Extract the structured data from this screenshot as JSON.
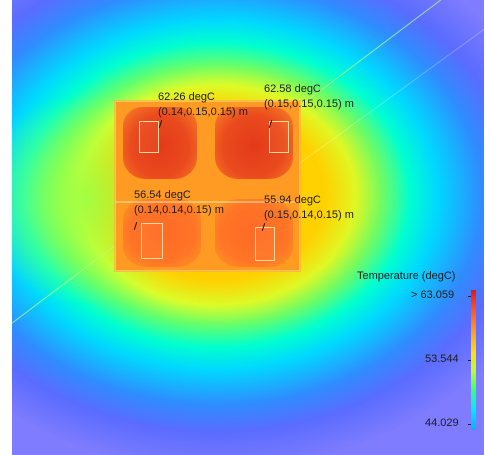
{
  "probes": [
    {
      "value": "62.26 degC",
      "coords": "(0.14,0.15,0.15) m"
    },
    {
      "value": "62.58 degC",
      "coords": "(0.15,0.15,0.15) m"
    },
    {
      "value": "56.54 degC",
      "coords": "(0.14,0.14,0.15) m"
    },
    {
      "value": "55.94 degC",
      "coords": "(0.15,0.14,0.15) m"
    }
  ],
  "colorbar": {
    "title": "Temperature (degC)",
    "ticks": [
      "> 63.059",
      "53.544",
      "44.029"
    ],
    "colors": {
      "max": "#e0191a",
      "mid": "#ffe000",
      "min": "#10a8ff"
    }
  }
}
